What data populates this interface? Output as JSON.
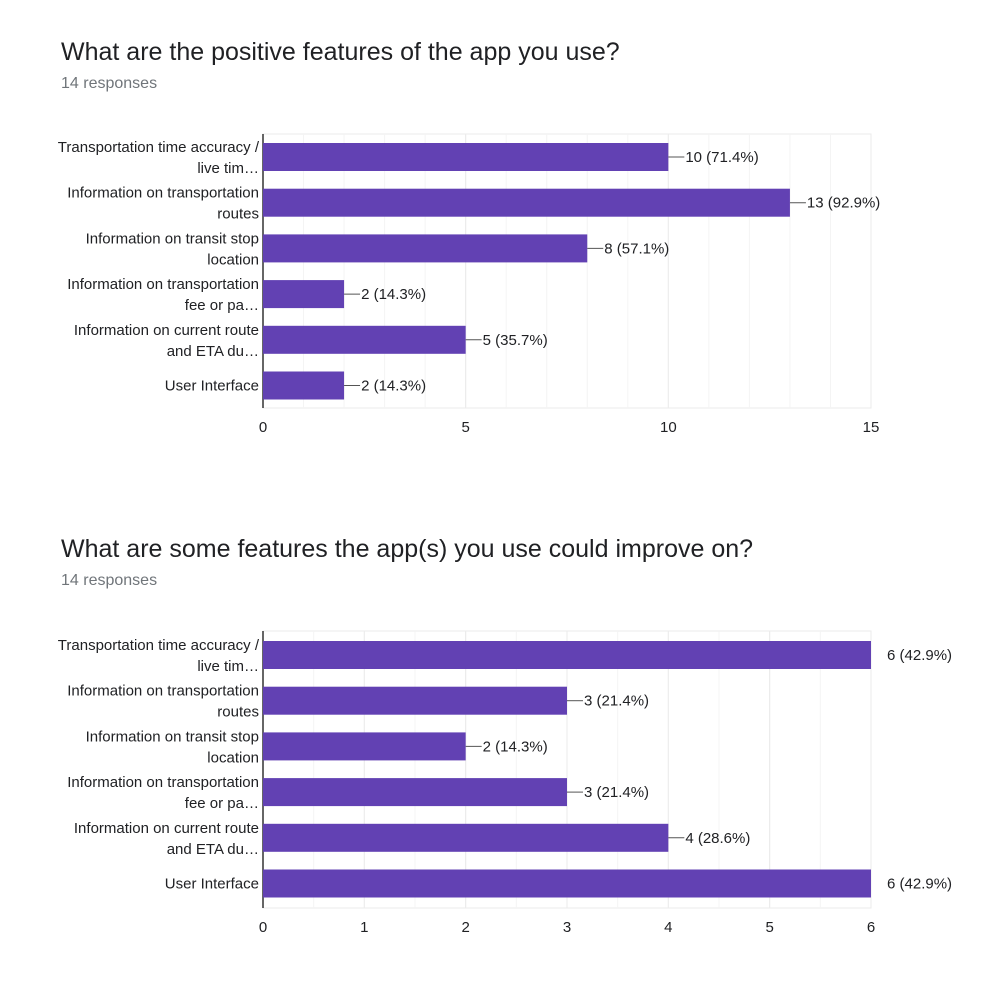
{
  "colors": {
    "bar": "#6241b3",
    "grid": "#ebebeb",
    "axis": "#333333",
    "text": "#202124",
    "muted": "#70757a"
  },
  "chart_data": [
    {
      "type": "bar",
      "orientation": "horizontal",
      "title": "What are the positive features of the app you use?",
      "subtitle": "14 responses",
      "categories": [
        [
          "Transportation time accuracy /",
          "live tim…"
        ],
        [
          "Information on transportation",
          "routes"
        ],
        [
          "Information on transit stop",
          "location"
        ],
        [
          "Information on transportation",
          "fee or pa…"
        ],
        [
          "Information on current route",
          "and ETA du…"
        ],
        [
          "User Interface"
        ]
      ],
      "values": [
        10,
        13,
        8,
        2,
        5,
        2
      ],
      "data_labels": [
        "10 (71.4%)",
        "13 (92.9%)",
        "8 (57.1%)",
        "2 (14.3%)",
        "5 (35.7%)",
        "2 (14.3%)"
      ],
      "xlim": [
        0,
        15
      ],
      "xticks": [
        0,
        5,
        10,
        15
      ],
      "grid": true
    },
    {
      "type": "bar",
      "orientation": "horizontal",
      "title": "What are some features the app(s) you use could improve on?",
      "subtitle": "14 responses",
      "categories": [
        [
          "Transportation time accuracy /",
          "live tim…"
        ],
        [
          "Information on transportation",
          "routes"
        ],
        [
          "Information on transit stop",
          "location"
        ],
        [
          "Information on transportation",
          "fee or pa…"
        ],
        [
          "Information on current route",
          "and ETA du…"
        ],
        [
          "User Interface"
        ]
      ],
      "values": [
        6,
        3,
        2,
        3,
        4,
        6
      ],
      "data_labels": [
        "6 (42.9%)",
        "3 (21.4%)",
        "2 (14.3%)",
        "3 (21.4%)",
        "4 (28.6%)",
        "6 (42.9%)"
      ],
      "xlim": [
        0,
        6
      ],
      "xticks": [
        0,
        1,
        2,
        3,
        4,
        5,
        6
      ],
      "grid": true
    }
  ]
}
